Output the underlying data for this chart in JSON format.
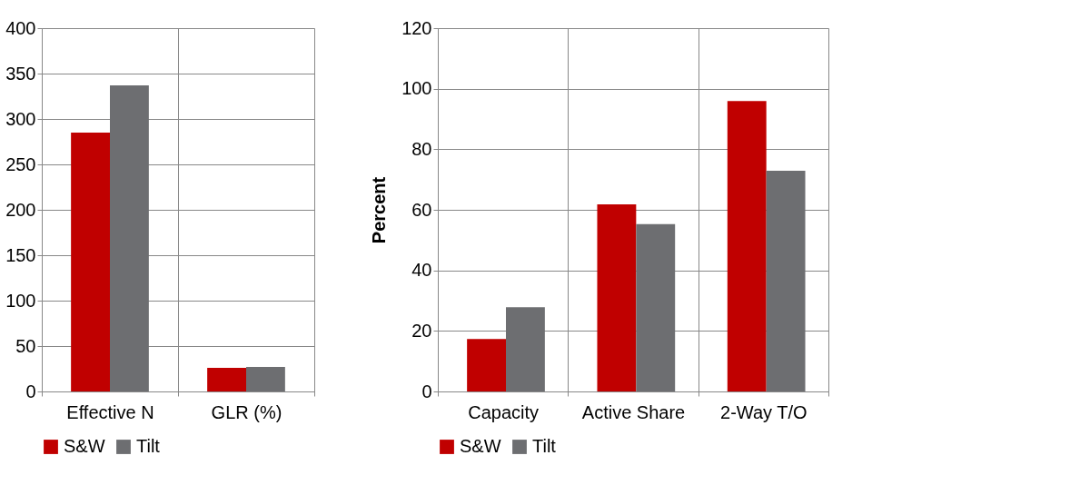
{
  "chart_data": [
    {
      "type": "bar",
      "categories": [
        "Effective N",
        "GLR (%)"
      ],
      "series": [
        {
          "name": "S&W",
          "color": "#c00000",
          "values": [
            285,
            26
          ]
        },
        {
          "name": "Tilt",
          "color": "#6d6e71",
          "values": [
            337,
            27
          ]
        }
      ],
      "ylim": [
        0,
        400
      ],
      "yticks": [
        0,
        50,
        100,
        150,
        200,
        250,
        300,
        350,
        400
      ],
      "grid": true,
      "legend": "bottom"
    },
    {
      "type": "bar",
      "ylabel": "Percent",
      "categories": [
        "Capacity",
        "Active Share",
        "2-Way T/O"
      ],
      "series": [
        {
          "name": "S&W",
          "color": "#c00000",
          "values": [
            17.3,
            61.8,
            95.9
          ]
        },
        {
          "name": "Tilt",
          "color": "#6d6e71",
          "values": [
            27.8,
            55.3,
            72.9
          ]
        }
      ],
      "ylim": [
        0,
        120
      ],
      "yticks": [
        0,
        20,
        40,
        60,
        80,
        100,
        120
      ],
      "grid": true,
      "legend": "bottom"
    }
  ]
}
